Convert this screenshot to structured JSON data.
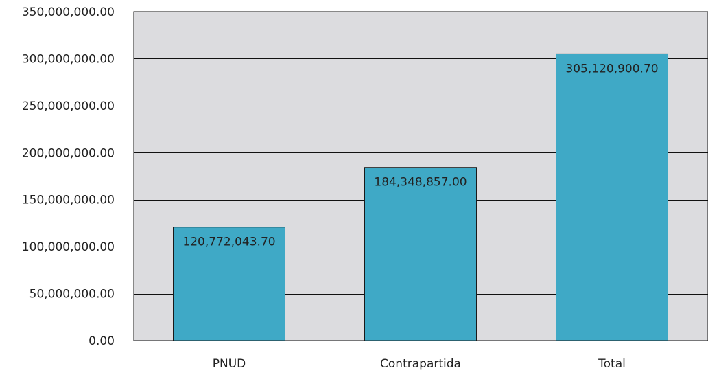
{
  "chart_data": {
    "type": "bar",
    "categories": [
      "PNUD",
      "Contrapartida",
      "Total"
    ],
    "values": [
      120772043.7,
      184348857.0,
      305120900.7
    ],
    "data_labels": [
      "120,772,043.70",
      "184,348,857.00",
      "305,120,900.70"
    ],
    "title": "",
    "xlabel": "",
    "ylabel": "",
    "ylim": [
      0,
      350000000
    ],
    "y_ticks": [
      0,
      50000000,
      100000000,
      150000000,
      200000000,
      250000000,
      300000000,
      350000000
    ],
    "y_tick_labels": [
      "0.00",
      "50,000,000.00",
      "100,000,000.00",
      "150,000,000.00",
      "200,000,000.00",
      "250,000,000.00",
      "300,000,000.00",
      "350,000,000.00"
    ],
    "grid": true,
    "legend": "none",
    "colors": {
      "bar": "#3fa9c6",
      "plot_background": "#dcdcdf",
      "gridline": "#111111",
      "bar_outline": "#1a1a1a"
    }
  }
}
